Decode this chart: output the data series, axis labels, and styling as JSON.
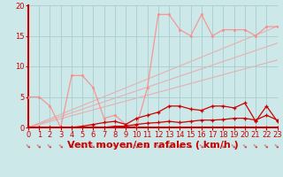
{
  "background_color": "#cce8e8",
  "grid_color": "#aacccc",
  "xlabel": "Vent moyen/en rafales ( km/h )",
  "xlim": [
    0,
    23
  ],
  "ylim": [
    0,
    20
  ],
  "yticks": [
    0,
    5,
    10,
    15,
    20
  ],
  "xticks": [
    0,
    1,
    2,
    3,
    4,
    5,
    6,
    7,
    8,
    9,
    10,
    11,
    12,
    13,
    14,
    15,
    16,
    17,
    18,
    19,
    20,
    21,
    22,
    23
  ],
  "x": [
    0,
    1,
    2,
    3,
    4,
    5,
    6,
    7,
    8,
    9,
    10,
    11,
    12,
    13,
    14,
    15,
    16,
    17,
    18,
    19,
    20,
    21,
    22,
    23
  ],
  "line_dark1": [
    0,
    0,
    0,
    0,
    0,
    0,
    0,
    0,
    0,
    0,
    0,
    0,
    0,
    0,
    0,
    0,
    0,
    0,
    0,
    0,
    0,
    0,
    0,
    0
  ],
  "line_dark2": [
    0,
    0,
    0,
    0,
    0,
    0,
    0,
    0,
    0.2,
    0.2,
    0.5,
    0.7,
    0.8,
    1.0,
    0.8,
    1.0,
    1.2,
    1.2,
    1.3,
    1.5,
    1.5,
    1.2,
    2.0,
    1.2
  ],
  "line_dark3": [
    0,
    0,
    0,
    0,
    0,
    0.2,
    0.5,
    0.8,
    1.0,
    0.5,
    1.5,
    2.0,
    2.5,
    3.5,
    3.5,
    3.0,
    2.8,
    3.5,
    3.5,
    3.2,
    4.0,
    1.0,
    3.5,
    1.0
  ],
  "line_pink": [
    5,
    5,
    3.5,
    0,
    8.5,
    8.5,
    6.5,
    1.5,
    2.0,
    0.5,
    0.2,
    6.5,
    18.5,
    18.5,
    16,
    15,
    18.5,
    15,
    16,
    16,
    16,
    15,
    16.5,
    16.5
  ],
  "line_trend1": [
    0,
    0.72,
    1.44,
    2.16,
    2.88,
    3.6,
    4.32,
    5.04,
    5.76,
    6.48,
    7.2,
    7.92,
    8.64,
    9.36,
    10.08,
    10.8,
    11.52,
    12.24,
    12.96,
    13.68,
    14.4,
    15.12,
    15.84,
    16.56
  ],
  "line_trend2": [
    0,
    0.6,
    1.2,
    1.8,
    2.4,
    3.0,
    3.6,
    4.2,
    4.8,
    5.4,
    6.0,
    6.6,
    7.2,
    7.8,
    8.4,
    9.0,
    9.6,
    10.2,
    10.8,
    11.4,
    12.0,
    12.6,
    13.2,
    13.8
  ],
  "line_trend3": [
    0,
    0.48,
    0.96,
    1.44,
    1.92,
    2.4,
    2.88,
    3.36,
    3.84,
    4.32,
    4.8,
    5.28,
    5.76,
    6.24,
    6.72,
    7.2,
    7.68,
    8.16,
    8.64,
    9.12,
    9.6,
    10.08,
    10.56,
    11.04
  ],
  "dark_red": "#cc0000",
  "pink_red": "#ff8888",
  "label_color": "#cc0000",
  "tick_fontsize": 6,
  "label_fontsize": 8
}
